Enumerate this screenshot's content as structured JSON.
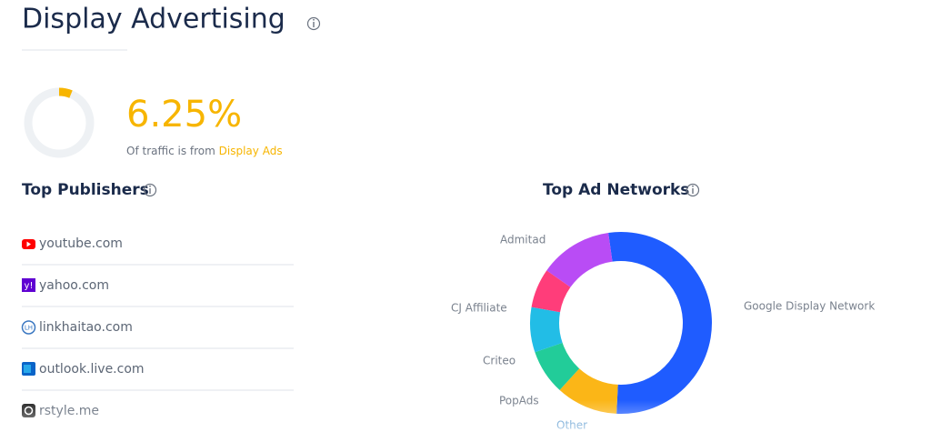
{
  "header": {
    "title": "Display Advertising"
  },
  "traffic": {
    "value": 6.25,
    "value_label": "6.25%",
    "caption": "Of traffic is from",
    "caption_link": "Display Ads",
    "color": "#f7b500"
  },
  "publishers": {
    "title": "Top Publishers",
    "items": [
      "youtube.com",
      "yahoo.com",
      "linkhaitao.com",
      "outlook.live.com",
      "rstyle.me"
    ]
  },
  "chart_data": {
    "type": "donut",
    "title": "Top Ad Networks",
    "categories": [
      "Google Display Network",
      "Other",
      "PopAds",
      "Criteo",
      "CJ Affiliate",
      "Admitad"
    ],
    "values": [
      53,
      11,
      8,
      8,
      7,
      13
    ],
    "colors": [
      "#1f5cff",
      "#fbb617",
      "#22cc99",
      "#22bde6",
      "#ff3d7a",
      "#b94cf5"
    ]
  }
}
